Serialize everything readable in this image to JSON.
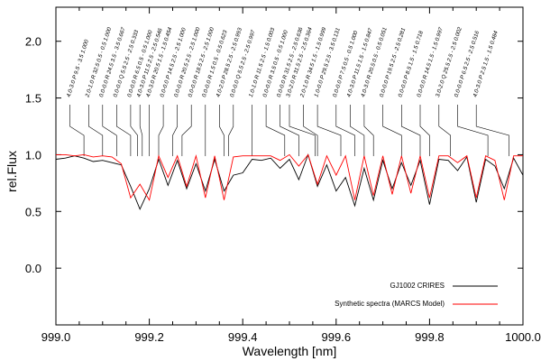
{
  "chart_data": {
    "type": "line",
    "title": "",
    "xlabel": "Wavelength [nm]",
    "ylabel": "rel.Flux",
    "xlim": [
      999.0,
      1000.0
    ],
    "ylim": [
      -0.5,
      2.3
    ],
    "xticks": [
      999.0,
      999.2,
      999.4,
      999.6,
      999.8,
      1000.0
    ],
    "xtick_labels": [
      "999.0",
      "999.2",
      "999.4",
      "999.6",
      "999.8",
      "1000.0"
    ],
    "yticks": [
      0.0,
      0.5,
      1.0,
      1.5,
      2.0
    ],
    "ytick_labels": [
      "0.0",
      "0.5",
      "1.0",
      "1.5",
      "2.0"
    ],
    "grid": false,
    "legend_position": "bottom-right",
    "colors": {
      "observed": "#000000",
      "synthetic": "#ff0000"
    },
    "series": [
      {
        "name": "GJ1002 CRIRES",
        "style": "line",
        "color": "#000000",
        "x": [
          999.0,
          999.02,
          999.04,
          999.06,
          999.08,
          999.1,
          999.12,
          999.14,
          999.16,
          999.18,
          999.2,
          999.22,
          999.24,
          999.26,
          999.28,
          999.3,
          999.32,
          999.34,
          999.36,
          999.38,
          999.4,
          999.42,
          999.44,
          999.46,
          999.48,
          999.5,
          999.52,
          999.54,
          999.56,
          999.58,
          999.6,
          999.62,
          999.64,
          999.66,
          999.68,
          999.7,
          999.72,
          999.74,
          999.76,
          999.78,
          999.8,
          999.82,
          999.84,
          999.86,
          999.88,
          999.9,
          999.92,
          999.94,
          999.96,
          999.98,
          1000.0
        ],
        "y": [
          0.96,
          0.97,
          0.99,
          0.97,
          0.94,
          0.95,
          0.93,
          0.91,
          0.72,
          0.52,
          0.7,
          0.96,
          0.73,
          0.95,
          0.7,
          0.92,
          0.68,
          0.96,
          0.68,
          0.82,
          0.84,
          0.96,
          0.95,
          0.97,
          0.88,
          0.96,
          0.78,
          1.0,
          0.72,
          0.91,
          0.68,
          0.8,
          0.55,
          0.88,
          0.6,
          0.95,
          0.7,
          0.93,
          0.73,
          0.95,
          0.56,
          0.96,
          0.95,
          0.86,
          0.98,
          0.58,
          0.96,
          0.9,
          0.7,
          0.97,
          0.82
        ]
      },
      {
        "name": "Synthetic spectra (MARCS Model)",
        "style": "line",
        "color": "#ff0000",
        "x": [
          999.0,
          999.02,
          999.04,
          999.06,
          999.08,
          999.1,
          999.12,
          999.14,
          999.16,
          999.18,
          999.2,
          999.22,
          999.24,
          999.26,
          999.28,
          999.3,
          999.32,
          999.34,
          999.36,
          999.38,
          999.4,
          999.42,
          999.44,
          999.46,
          999.48,
          999.5,
          999.52,
          999.54,
          999.56,
          999.58,
          999.6,
          999.62,
          999.64,
          999.66,
          999.68,
          999.7,
          999.72,
          999.74,
          999.76,
          999.78,
          999.8,
          999.82,
          999.84,
          999.86,
          999.88,
          999.9,
          999.92,
          999.94,
          999.96,
          999.98,
          1000.0
        ],
        "y": [
          1.0,
          1.0,
          0.99,
          1.0,
          0.98,
          0.99,
          0.98,
          0.92,
          0.62,
          0.74,
          0.6,
          0.99,
          0.8,
          0.99,
          0.72,
          0.99,
          0.62,
          0.99,
          0.6,
          0.98,
          0.99,
          0.99,
          0.99,
          0.99,
          0.95,
          1.0,
          0.9,
          1.0,
          0.74,
          0.99,
          0.82,
          0.99,
          0.6,
          0.99,
          0.64,
          0.99,
          0.65,
          0.99,
          0.66,
          0.99,
          0.62,
          0.99,
          0.99,
          0.93,
          0.99,
          0.62,
          0.99,
          0.95,
          0.6,
          0.99,
          0.99
        ]
      }
    ],
    "line_ids": [
      {
        "label": "4.0-3.0 P 9.5 - 3.5 1.000",
        "x": 999.03
      },
      {
        "label": "2.0-1.0 R 32.5 0.5 - 0.5 1.000",
        "x": 999.07
      },
      {
        "label": "0.0-0.0 R 24.5 3.5 - 3.5 0.667",
        "x": 999.1
      },
      {
        "label": "0.0-0.0 Q 5.5 2.5 - 2.5 0.333",
        "x": 999.13
      },
      {
        "label": "0.0-0.0 R 6.5 0.5 - 0.5 1.000",
        "x": 999.16
      },
      {
        "label": "4.0-3.0 P 11.5 2.5 - 2.5 0.546",
        "x": 999.18
      },
      {
        "label": "4.0-3.0 R 20.5 1.5 - 1.5 0.454",
        "x": 999.2
      },
      {
        "label": "0.0-0.0 P 14.5 2.5 - 2.5 1.000",
        "x": 999.23
      },
      {
        "label": "0.0-0.0 R 20.5 2.5 - 2.5 1.000",
        "x": 999.26
      },
      {
        "label": "0.0-0.0 R 18.5 2.5 - 2.5 1.000",
        "x": 999.29
      },
      {
        "label": "0.0-0.0 R 1.5 0.5 - 0.5 0.623",
        "x": 999.32
      },
      {
        "label": "4.0-2.0 P 28.5 2.5 - 2.5 0.993",
        "x": 999.35
      },
      {
        "label": "0.0-0.0 Q 5.5 2.5 - 2.5 0.997",
        "x": 999.38
      },
      {
        "label": "1.0-1.0 R 11.5 2.5 - 1.5 0.003",
        "x": 999.42
      },
      {
        "label": "0.0-0.0 R 3.5 0.5 - 0.5 1.000",
        "x": 999.45
      },
      {
        "label": "0.0-0.0 R 31.5 2.5 - 2.5 0.636",
        "x": 999.48
      },
      {
        "label": "3.0-2.0 R 31.5 2.5 - 2.5 0.364",
        "x": 999.5
      },
      {
        "label": "2.0-1.0 R 34.5 1.5 - 1.5 0.999",
        "x": 999.53
      },
      {
        "label": "1.0-0.0 P 29.5 2.5 - 3.5 0.131",
        "x": 999.56
      },
      {
        "label": "0.0-0.0 P 7.5 0.5 - 0.5 1.000",
        "x": 999.6
      },
      {
        "label": "4.0-3.0 P 11.5 1.5 - 1.5 0.847",
        "x": 999.63
      },
      {
        "label": "4.0-3.0 R 20.5 0.5 - 0.5 0.051",
        "x": 999.66
      },
      {
        "label": "0.0-0.0 P 19.5 2.5 - 2.5 0.281",
        "x": 999.7
      },
      {
        "label": "0.0-0.0 P 8.5 1.5 - 1.5 0.718",
        "x": 999.74
      },
      {
        "label": "0.0-0.0 R 14.5 1.5 - 1.5 0.997",
        "x": 999.78
      },
      {
        "label": "3.0-2.0 Q 25.5 2.5 - 2.5 0.002",
        "x": 999.82
      },
      {
        "label": "0.0-0.0 P 6.5 2.5 - 2.5 0.516",
        "x": 999.86
      },
      {
        "label": "4.0-3.0 P 2.5 1.5 - 1.5 0.484",
        "x": 999.9
      }
    ],
    "line_id_targets": [
      999.06,
      999.1,
      999.13,
      999.16,
      999.175,
      999.185,
      999.2,
      999.22,
      999.25,
      999.27,
      999.32,
      999.36,
      999.37,
      999.42,
      999.49,
      999.52,
      999.555,
      999.56,
      999.61,
      999.64,
      999.66,
      999.68,
      999.74,
      999.78,
      999.8,
      999.845,
      999.925,
      999.97
    ]
  }
}
